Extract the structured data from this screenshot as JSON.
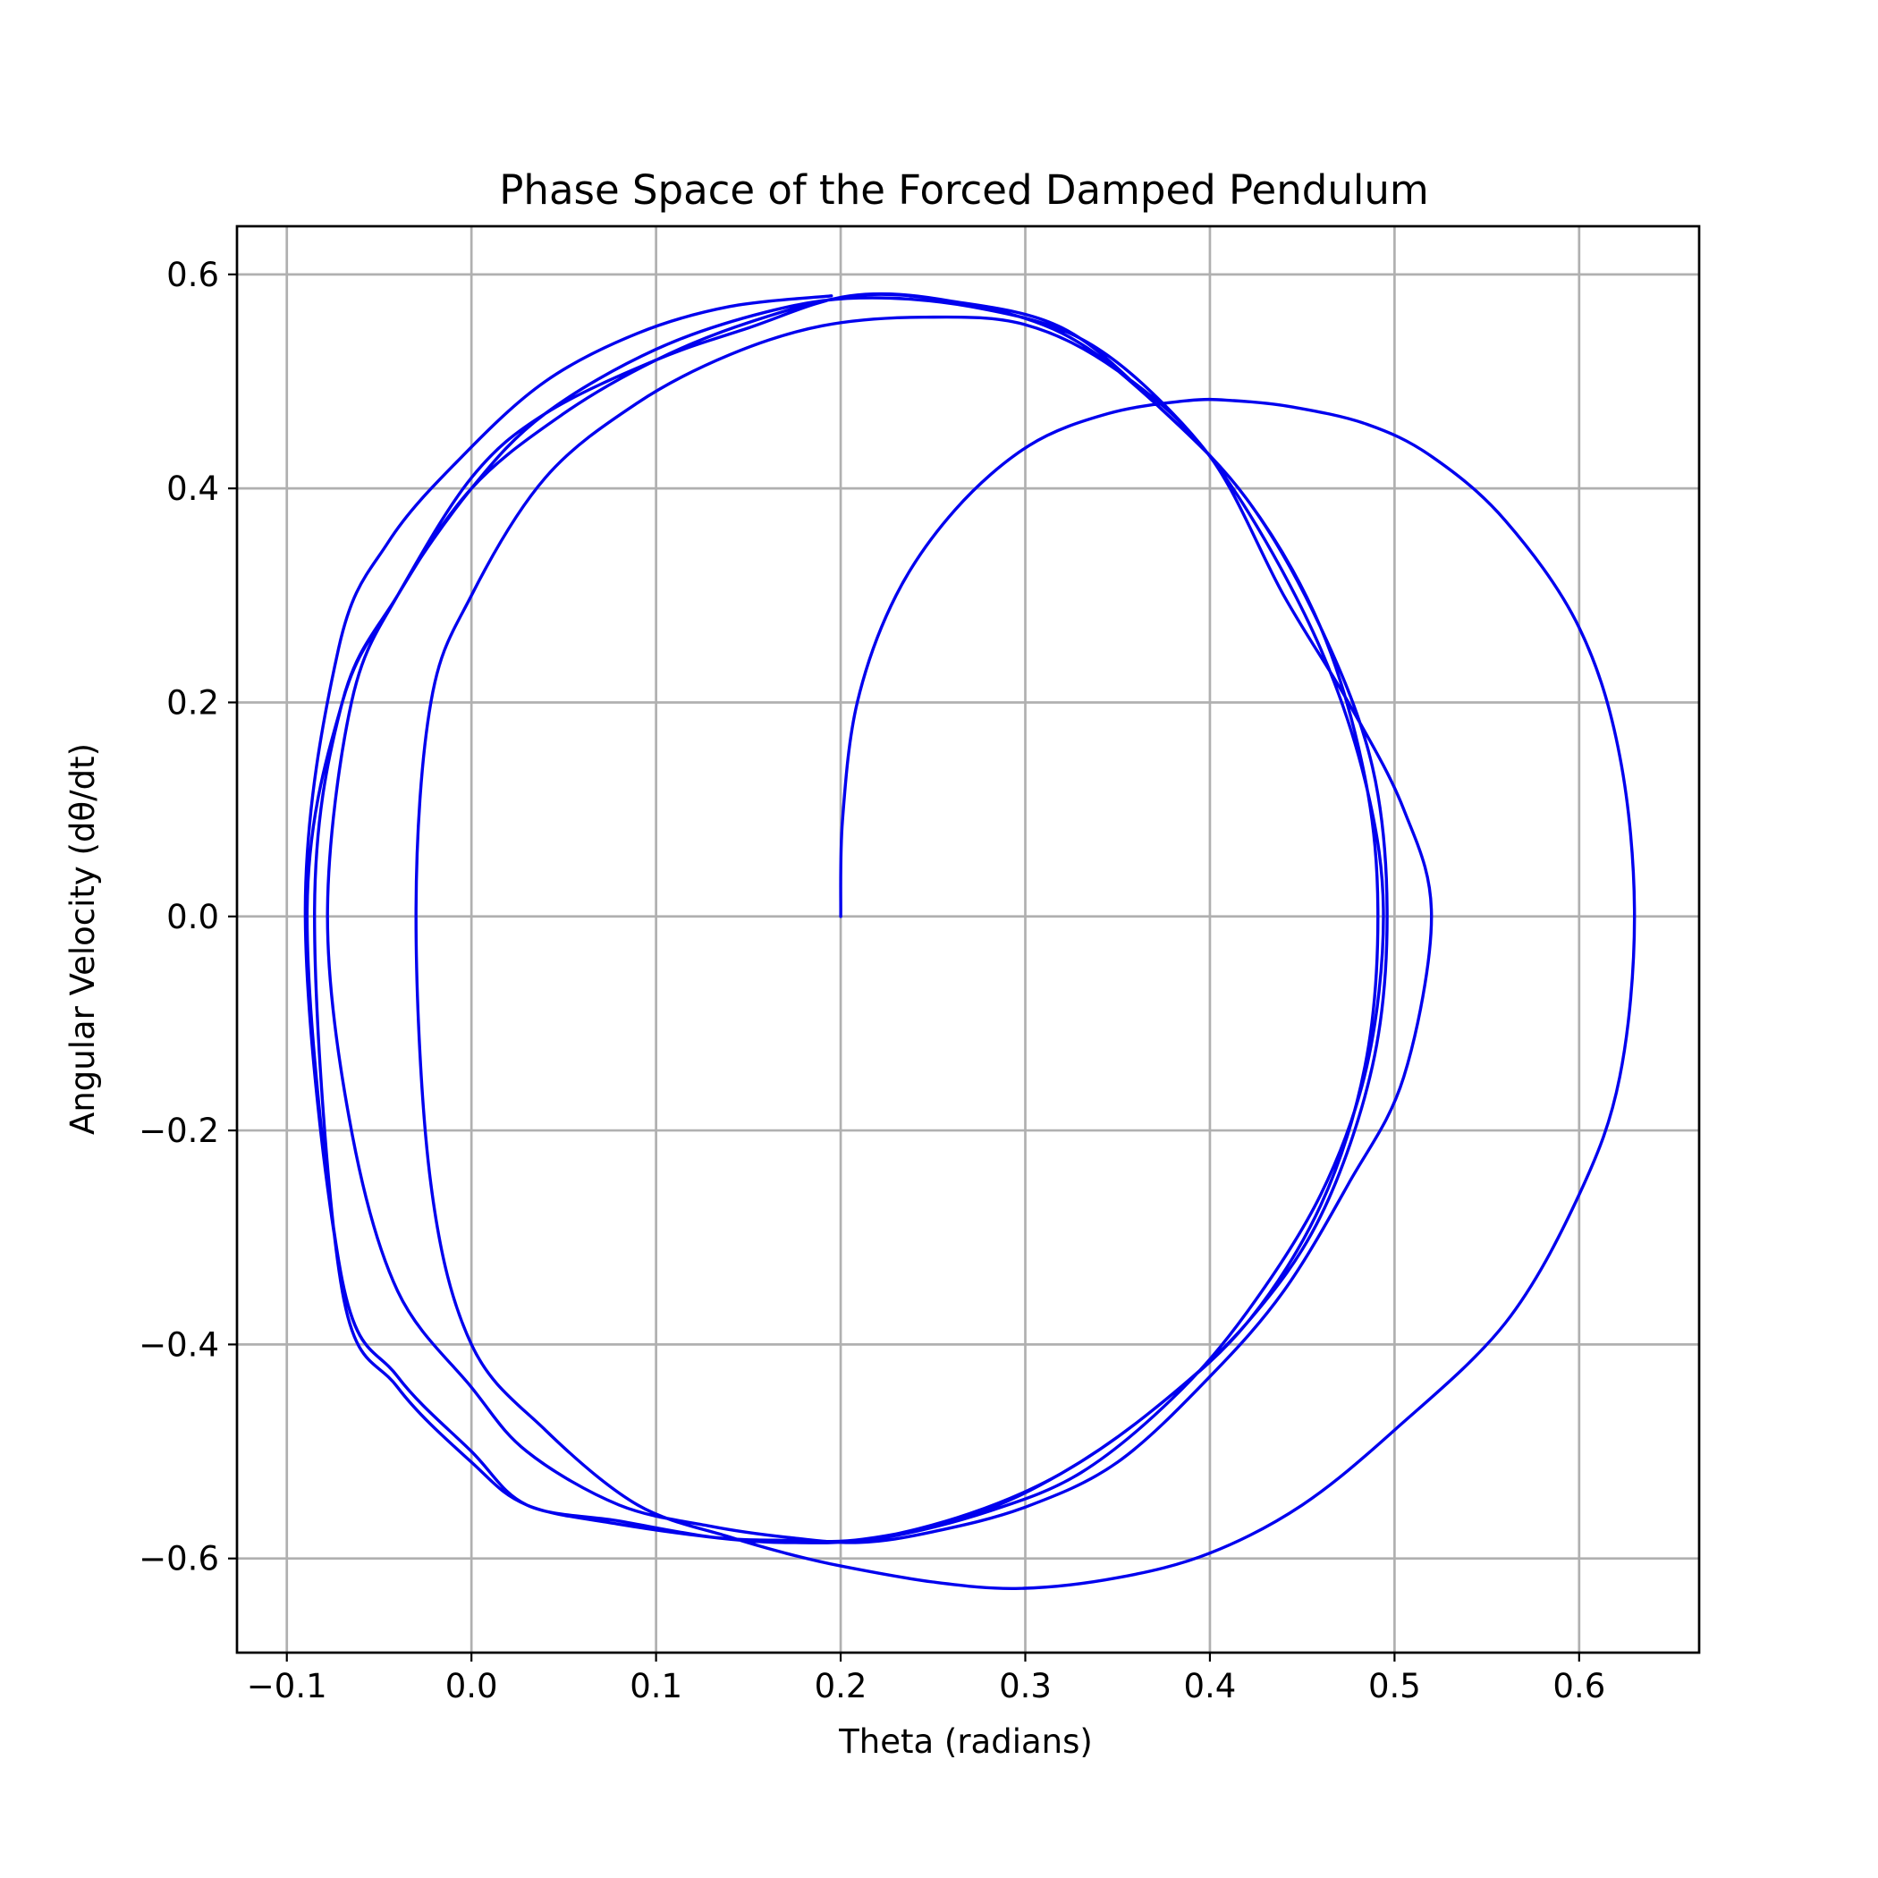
{
  "chart_data": {
    "type": "line",
    "title": "Phase Space of the Forced Damped Pendulum",
    "xlabel": "Theta (radians)",
    "ylabel": "Angular Velocity (dθ/dt)",
    "xlim": [
      -0.127,
      0.665
    ],
    "ylim": [
      -0.688,
      0.645
    ],
    "xticks": [
      -0.1,
      0.0,
      0.1,
      0.2,
      0.3,
      0.4,
      0.5,
      0.6
    ],
    "xtick_labels": [
      "−0.1",
      "0.0",
      "0.1",
      "0.2",
      "0.3",
      "0.4",
      "0.5",
      "0.6"
    ],
    "yticks": [
      -0.6,
      -0.4,
      -0.2,
      0.0,
      0.2,
      0.4,
      0.6
    ],
    "ytick_labels": [
      "−0.6",
      "−0.4",
      "−0.2",
      "0.0",
      "0.2",
      "0.4",
      "0.6"
    ],
    "grid": true,
    "line_color": "#0000ee",
    "series": [
      {
        "x": [
          0.2,
          0.201,
          0.209,
          0.23,
          0.262,
          0.302,
          0.345,
          0.388,
          0.413,
          0.445,
          0.485,
          0.52,
          0.56,
          0.6,
          0.622,
          0.63,
          0.622,
          0.6,
          0.56,
          0.5,
          0.45,
          0.4,
          0.35,
          0.297,
          0.25,
          0.2,
          0.17,
          0.14,
          0.09,
          0.04,
          0.0,
          -0.022,
          -0.03,
          -0.022,
          0.0,
          0.04,
          0.09,
          0.14,
          0.19,
          0.245,
          0.3,
          0.35,
          0.4,
          0.44,
          0.475,
          0.505,
          0.52,
          0.505,
          0.475,
          0.44,
          0.4,
          0.35,
          0.3,
          0.25,
          0.21,
          0.17,
          0.13,
          0.08,
          0.03,
          0.0,
          -0.04,
          -0.065,
          -0.078,
          -0.065,
          -0.04,
          0.0,
          0.04,
          0.1,
          0.16,
          0.21,
          0.27,
          0.33,
          0.38,
          0.42,
          0.46,
          0.485,
          0.494,
          0.485,
          0.46,
          0.42,
          0.38,
          0.33,
          0.28,
          0.225,
          0.18,
          0.14,
          0.08,
          0.03,
          0.0,
          -0.04,
          -0.07,
          -0.085,
          -0.07,
          -0.04,
          0.0,
          0.05,
          0.1,
          0.15,
          0.207,
          0.26,
          0.32,
          0.37,
          0.42,
          0.46,
          0.488,
          0.496,
          0.488,
          0.46,
          0.42,
          0.37,
          0.32,
          0.27,
          0.212,
          0.17,
          0.13,
          0.08,
          0.03,
          0.0,
          -0.04,
          -0.07,
          -0.089,
          -0.07,
          -0.04,
          0.0,
          0.04,
          0.1,
          0.15,
          0.205,
          0.26,
          0.32,
          0.37,
          0.42,
          0.46,
          0.484,
          0.491,
          0.484,
          0.46,
          0.42,
          0.37,
          0.32,
          0.27,
          0.215,
          0.17,
          0.13,
          0.08,
          0.03,
          0.0,
          -0.04,
          -0.07,
          -0.09,
          -0.072,
          -0.045,
          -0.005,
          0.04,
          0.09,
          0.14,
          0.195
        ],
        "y": [
          0.0,
          0.09,
          0.2,
          0.3,
          0.38,
          0.44,
          0.47,
          0.482,
          0.482,
          0.476,
          0.46,
          0.43,
          0.37,
          0.27,
          0.15,
          0.0,
          -0.15,
          -0.26,
          -0.38,
          -0.48,
          -0.55,
          -0.595,
          -0.618,
          -0.628,
          -0.622,
          -0.607,
          -0.595,
          -0.58,
          -0.55,
          -0.48,
          -0.4,
          -0.25,
          0.0,
          0.2,
          0.3,
          0.41,
          0.48,
          0.525,
          0.552,
          0.56,
          0.553,
          0.51,
          0.43,
          0.3,
          0.2,
          0.1,
          0.0,
          -0.15,
          -0.25,
          -0.35,
          -0.43,
          -0.51,
          -0.552,
          -0.575,
          -0.585,
          -0.58,
          -0.57,
          -0.55,
          -0.5,
          -0.44,
          -0.35,
          -0.2,
          0.0,
          0.2,
          0.3,
          0.4,
          0.47,
          0.53,
          0.565,
          0.578,
          0.57,
          0.54,
          0.47,
          0.38,
          0.25,
          0.12,
          0.0,
          -0.14,
          -0.26,
          -0.37,
          -0.45,
          -0.52,
          -0.556,
          -0.58,
          -0.585,
          -0.582,
          -0.568,
          -0.55,
          -0.51,
          -0.44,
          -0.35,
          0.0,
          0.2,
          0.3,
          0.4,
          0.47,
          0.52,
          0.555,
          0.58,
          0.575,
          0.55,
          0.48,
          0.39,
          0.27,
          0.14,
          0.0,
          -0.14,
          -0.28,
          -0.38,
          -0.46,
          -0.52,
          -0.56,
          -0.582,
          -0.583,
          -0.58,
          -0.565,
          -0.55,
          -0.5,
          -0.43,
          -0.34,
          0.0,
          0.2,
          0.3,
          0.41,
          0.47,
          0.52,
          0.55,
          0.58,
          0.575,
          0.545,
          0.48,
          0.39,
          0.27,
          0.13,
          0.0,
          -0.14,
          -0.27,
          -0.38,
          -0.46,
          -0.52,
          -0.558,
          -0.582,
          -0.585,
          -0.58,
          -0.565,
          -0.55,
          -0.5,
          -0.43,
          -0.34,
          0.0,
          0.25,
          0.35,
          0.43,
          0.5,
          0.545,
          0.57,
          0.58
        ]
      }
    ]
  }
}
